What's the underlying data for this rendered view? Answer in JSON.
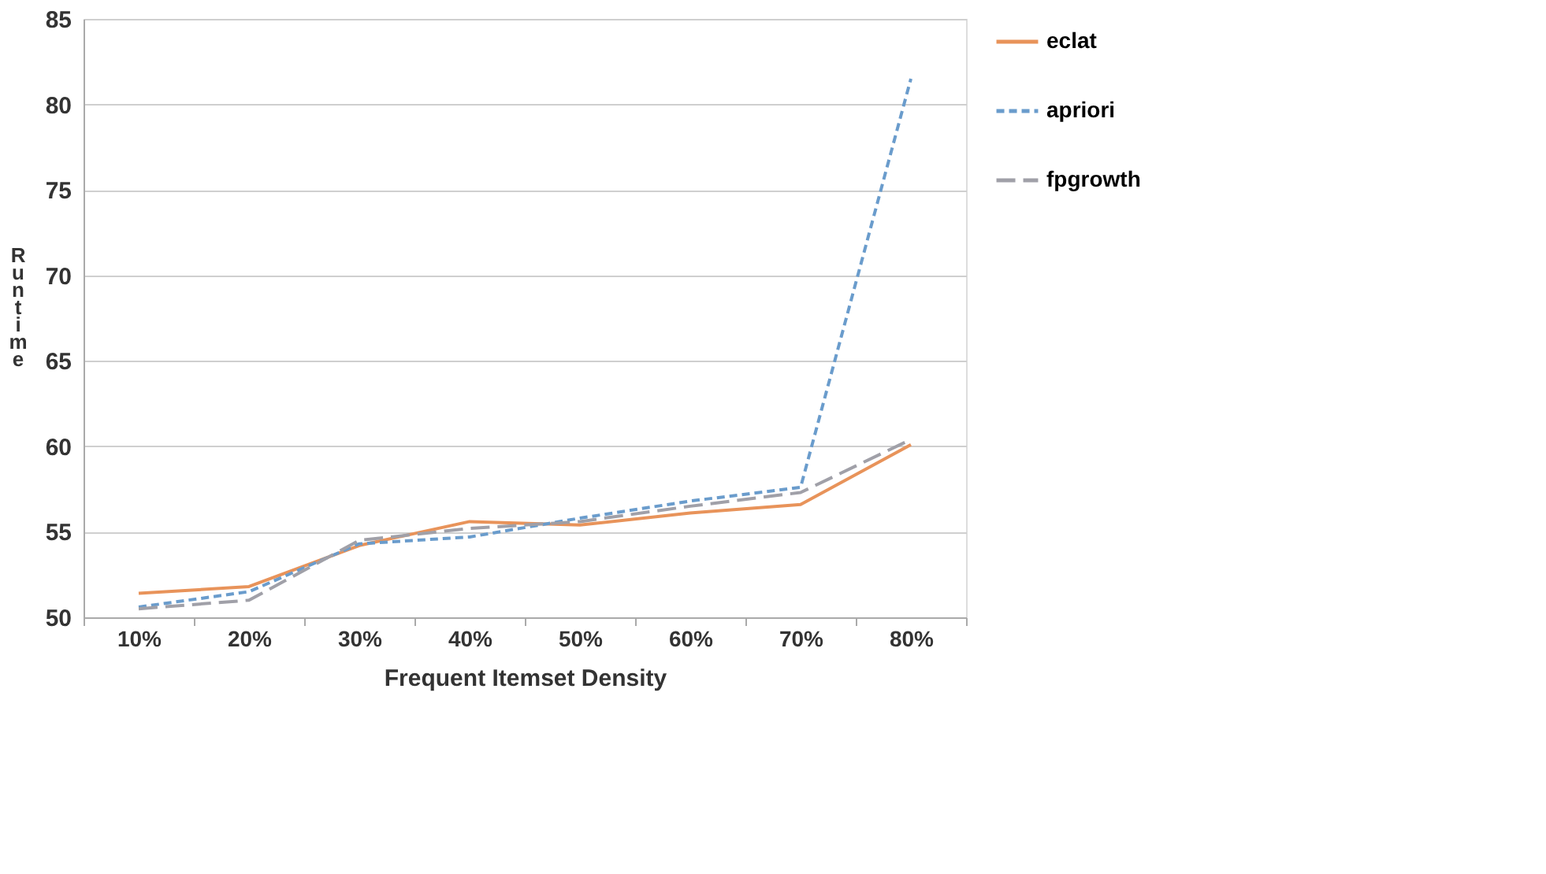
{
  "chart_data": {
    "type": "line",
    "xlabel": "Frequent Itemset Density",
    "ylabel": "Runtime",
    "categories": [
      "10%",
      "20%",
      "30%",
      "40%",
      "50%",
      "60%",
      "70%",
      "80%"
    ],
    "series": [
      {
        "name": "eclat",
        "color": "#e8935a",
        "line_style": "solid",
        "values": [
          51.4,
          51.8,
          54.2,
          55.6,
          55.4,
          56.1,
          56.6,
          60.1
        ]
      },
      {
        "name": "apriori",
        "color": "#6a9ccc",
        "line_style": "dotted",
        "values": [
          50.6,
          51.5,
          54.3,
          54.7,
          55.8,
          56.8,
          57.6,
          81.5
        ]
      },
      {
        "name": "fpgrowth",
        "color": "#a0a0a8",
        "line_style": "dashed",
        "values": [
          50.5,
          51.0,
          54.5,
          55.2,
          55.6,
          56.5,
          57.3,
          60.4
        ]
      }
    ],
    "ylim": [
      50,
      85
    ],
    "yticks": [
      50,
      55,
      60,
      65,
      70,
      75,
      80,
      85
    ],
    "grid": "y",
    "legend": "right",
    "marker": "none"
  }
}
